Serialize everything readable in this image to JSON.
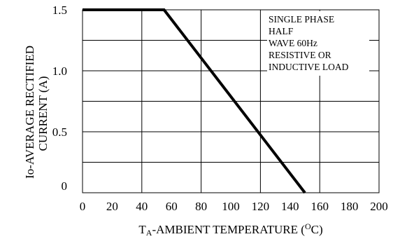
{
  "chart_data": {
    "type": "line",
    "xlabel": {
      "main": "T",
      "subscript": "A",
      "rest": "-AMBIENT TEMPERATURE (",
      "superscript": "O",
      "end": "C)"
    },
    "ylabel": [
      "Io-AVERAGE RECTIFIED",
      "CURRENT (A)"
    ],
    "x_ticks": [
      "0",
      "20",
      "40",
      "60",
      "80",
      "100",
      "120",
      "140",
      "160",
      "180",
      "200"
    ],
    "y_ticks": [
      "0",
      "0.5",
      "1.0",
      "1.5"
    ],
    "x_tick_values": [
      0,
      20,
      40,
      60,
      80,
      100,
      120,
      140,
      160,
      180,
      200
    ],
    "y_tick_values": [
      0,
      0.5,
      1.0,
      1.5
    ],
    "xlim": [
      0,
      200
    ],
    "ylim": [
      0,
      1.5
    ],
    "grid": true,
    "annotation": [
      "SINGLE PHASE",
      "HALF",
      "WAVE 60Hz",
      "RESISTIVE OR",
      "INDUCTIVE LOAD"
    ],
    "series": [
      {
        "x": [
          0,
          55,
          150
        ],
        "y": [
          1.5,
          1.5,
          0
        ]
      }
    ]
  }
}
